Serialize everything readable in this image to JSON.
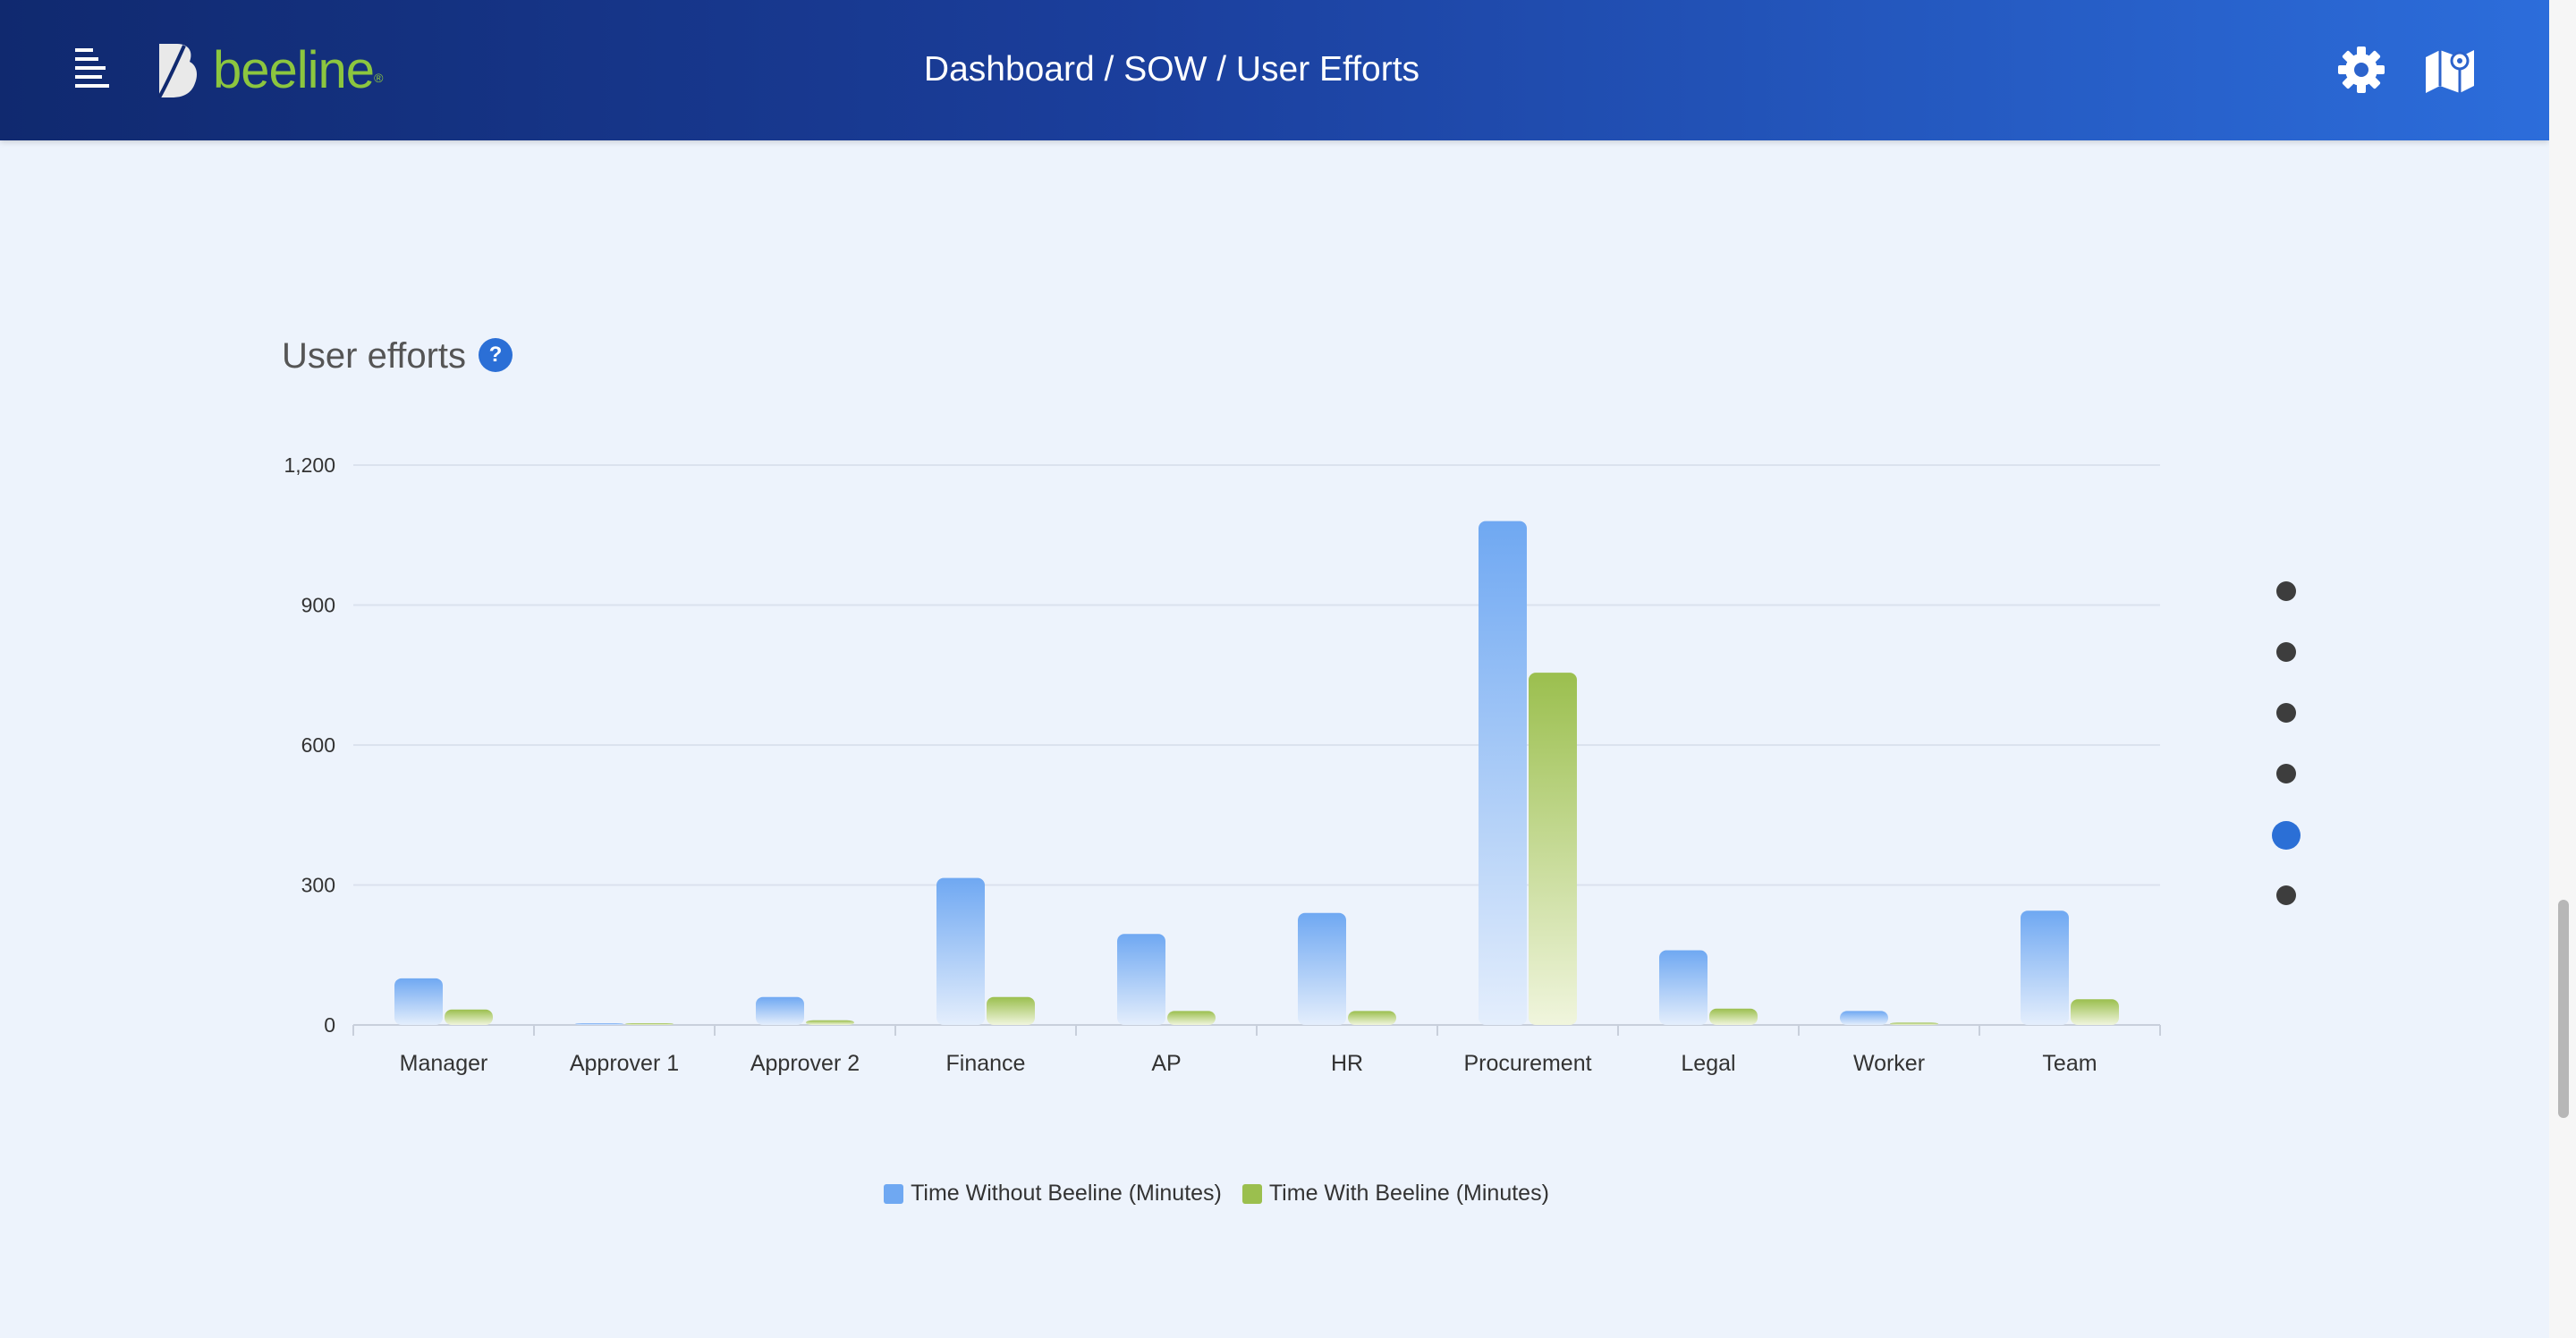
{
  "header": {
    "brand": "beeline",
    "breadcrumb": "Dashboard / SOW / User Efforts"
  },
  "card": {
    "title": "User efforts",
    "help_label": "?"
  },
  "colors": {
    "header_start": "#10296f",
    "header_end": "#2c6ddb",
    "series_without": "#6fa8f2",
    "series_with": "#9bbf4e",
    "accent": "#2b6fd6",
    "brand_green": "#8cc63f"
  },
  "chart_data": {
    "type": "bar",
    "title": "User efforts",
    "categories": [
      "Manager",
      "Approver 1",
      "Approver 2",
      "Finance",
      "AP",
      "HR",
      "Procurement",
      "Legal",
      "Worker",
      "Team"
    ],
    "series": [
      {
        "name": "Time Without Beeline (Minutes)",
        "values": [
          100,
          0,
          60,
          315,
          195,
          240,
          1080,
          160,
          30,
          245
        ]
      },
      {
        "name": "Time With Beeline (Minutes)",
        "values": [
          33,
          0,
          10,
          60,
          30,
          30,
          755,
          35,
          5,
          55
        ]
      }
    ],
    "ylim": [
      0,
      1200
    ],
    "yticks": [
      "0",
      "300",
      "600",
      "900",
      "1,200"
    ],
    "grid": true,
    "legend": "bottom-center"
  },
  "pager": {
    "count": 6,
    "active": 5
  }
}
